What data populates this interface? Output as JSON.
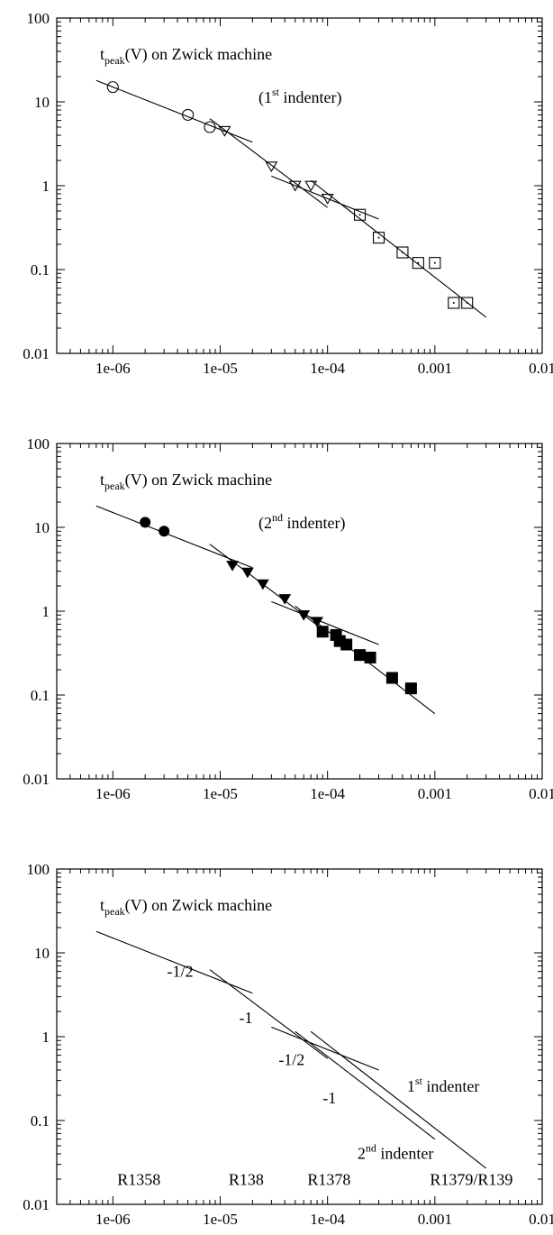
{
  "chart_data": [
    {
      "type": "scatter",
      "xscale": "log",
      "yscale": "log",
      "xlim": [
        3e-07,
        0.01
      ],
      "ylim": [
        0.01,
        100
      ],
      "xticks": [
        "1e-06",
        "1e-05",
        "1e-04",
        "0.001",
        "0.01"
      ],
      "yticks": [
        "100",
        "10",
        "1",
        "0.1",
        "0.01"
      ],
      "title_parts": {
        "pre": "t",
        "sub": "peak",
        "post": "(V) on Zwick machine"
      },
      "subtitle_parts": {
        "pre": "(1",
        "sup": "st",
        "post": " indenter)"
      },
      "series": [
        {
          "marker": "circle-open",
          "points": [
            [
              1e-06,
              15
            ],
            [
              5e-06,
              7
            ],
            [
              8e-06,
              5
            ]
          ]
        },
        {
          "marker": "triangle-down-open",
          "points": [
            [
              1.1e-05,
              4.5
            ],
            [
              3e-05,
              1.7
            ],
            [
              5e-05,
              1.0
            ],
            [
              7e-05,
              1.0
            ],
            [
              0.0001,
              0.7
            ]
          ]
        },
        {
          "marker": "square-dot-open",
          "points": [
            [
              0.0002,
              0.45
            ],
            [
              0.0003,
              0.24
            ],
            [
              0.0005,
              0.16
            ],
            [
              0.0007,
              0.12
            ],
            [
              0.001,
              0.12
            ],
            [
              0.0015,
              0.04
            ],
            [
              0.002,
              0.04
            ]
          ]
        }
      ],
      "fit_lines": [
        [
          [
            7e-07,
            18
          ],
          [
            2e-05,
            3.3
          ]
        ],
        [
          [
            8e-06,
            6.3
          ],
          [
            0.0001,
            0.55
          ]
        ],
        [
          [
            3e-05,
            1.3
          ],
          [
            0.0003,
            0.4
          ]
        ],
        [
          [
            7e-05,
            1.15
          ],
          [
            0.003,
            0.027
          ]
        ]
      ],
      "annotations": []
    },
    {
      "type": "scatter",
      "xscale": "log",
      "yscale": "log",
      "xlim": [
        3e-07,
        0.01
      ],
      "ylim": [
        0.01,
        100
      ],
      "xticks": [
        "1e-06",
        "1e-05",
        "1e-04",
        "0.001",
        "0.01"
      ],
      "yticks": [
        "100",
        "10",
        "1",
        "0.1",
        "0.01"
      ],
      "title_parts": {
        "pre": "t",
        "sub": "peak",
        "post": "(V) on Zwick machine"
      },
      "subtitle_parts": {
        "pre": "(2",
        "sup": "nd",
        "post": " indenter)"
      },
      "series": [
        {
          "marker": "circle-filled",
          "points": [
            [
              2e-06,
              11.5
            ],
            [
              3e-06,
              9
            ]
          ]
        },
        {
          "marker": "triangle-down-filled",
          "points": [
            [
              1.3e-05,
              3.5
            ],
            [
              1.8e-05,
              2.9
            ],
            [
              2.5e-05,
              2.1
            ],
            [
              4e-05,
              1.4
            ],
            [
              6e-05,
              0.9
            ],
            [
              8e-05,
              0.75
            ]
          ]
        },
        {
          "marker": "square-filled",
          "points": [
            [
              9e-05,
              0.57
            ],
            [
              0.00012,
              0.52
            ],
            [
              0.00013,
              0.44
            ],
            [
              0.00015,
              0.4
            ],
            [
              0.0002,
              0.3
            ],
            [
              0.00025,
              0.28
            ],
            [
              0.0004,
              0.16
            ],
            [
              0.0006,
              0.12
            ]
          ]
        }
      ],
      "fit_lines": [
        [
          [
            7e-07,
            18
          ],
          [
            2e-05,
            3.3
          ]
        ],
        [
          [
            8e-06,
            6.3
          ],
          [
            0.0001,
            0.55
          ]
        ],
        [
          [
            3e-05,
            1.3
          ],
          [
            0.0003,
            0.4
          ]
        ],
        [
          [
            5e-05,
            1.15
          ],
          [
            0.001,
            0.06
          ]
        ]
      ],
      "annotations": []
    },
    {
      "type": "line",
      "xscale": "log",
      "yscale": "log",
      "xlim": [
        3e-07,
        0.01
      ],
      "ylim": [
        0.01,
        100
      ],
      "xticks": [
        "1e-06",
        "1e-05",
        "1e-04",
        "0.001",
        "0.01"
      ],
      "yticks": [
        "100",
        "10",
        "1",
        "0.1",
        "0.01"
      ],
      "title_parts": {
        "pre": "t",
        "sub": "peak",
        "post": "(V) on Zwick machine"
      },
      "subtitle_parts": null,
      "series": [],
      "fit_lines": [
        [
          [
            7e-07,
            18
          ],
          [
            2e-05,
            3.3
          ]
        ],
        [
          [
            8e-06,
            6.3
          ],
          [
            0.0001,
            0.55
          ]
        ],
        [
          [
            3e-05,
            1.3
          ],
          [
            0.0003,
            0.4
          ]
        ],
        [
          [
            7e-05,
            1.15
          ],
          [
            0.003,
            0.027
          ]
        ],
        [
          [
            5e-05,
            1.15
          ],
          [
            0.001,
            0.06
          ]
        ]
      ],
      "annotations": [
        {
          "x": 3.2e-06,
          "y": 5.2,
          "text": "-1/2",
          "sup": "",
          "post": ""
        },
        {
          "x": 1.5e-05,
          "y": 1.45,
          "text": "-1",
          "sup": "",
          "post": ""
        },
        {
          "x": 3.5e-05,
          "y": 0.46,
          "text": "-1/2",
          "sup": "",
          "post": ""
        },
        {
          "x": 9e-05,
          "y": 0.16,
          "text": "-1",
          "sup": "",
          "post": ""
        },
        {
          "x": 0.00055,
          "y": 0.22,
          "text": "1",
          "sup": "st",
          "post": " indenter"
        },
        {
          "x": 0.00019,
          "y": 0.035,
          "text": "2",
          "sup": "nd",
          "post": " indenter"
        },
        {
          "x": 1.1e-06,
          "y": 0.017,
          "text": "R1358",
          "sup": "",
          "post": ""
        },
        {
          "x": 1.2e-05,
          "y": 0.017,
          "text": "R138",
          "sup": "",
          "post": ""
        },
        {
          "x": 6.5e-05,
          "y": 0.017,
          "text": "R1378",
          "sup": "",
          "post": ""
        },
        {
          "x": 0.0009,
          "y": 0.017,
          "text": "R1379/R139",
          "sup": "",
          "post": ""
        }
      ]
    }
  ]
}
